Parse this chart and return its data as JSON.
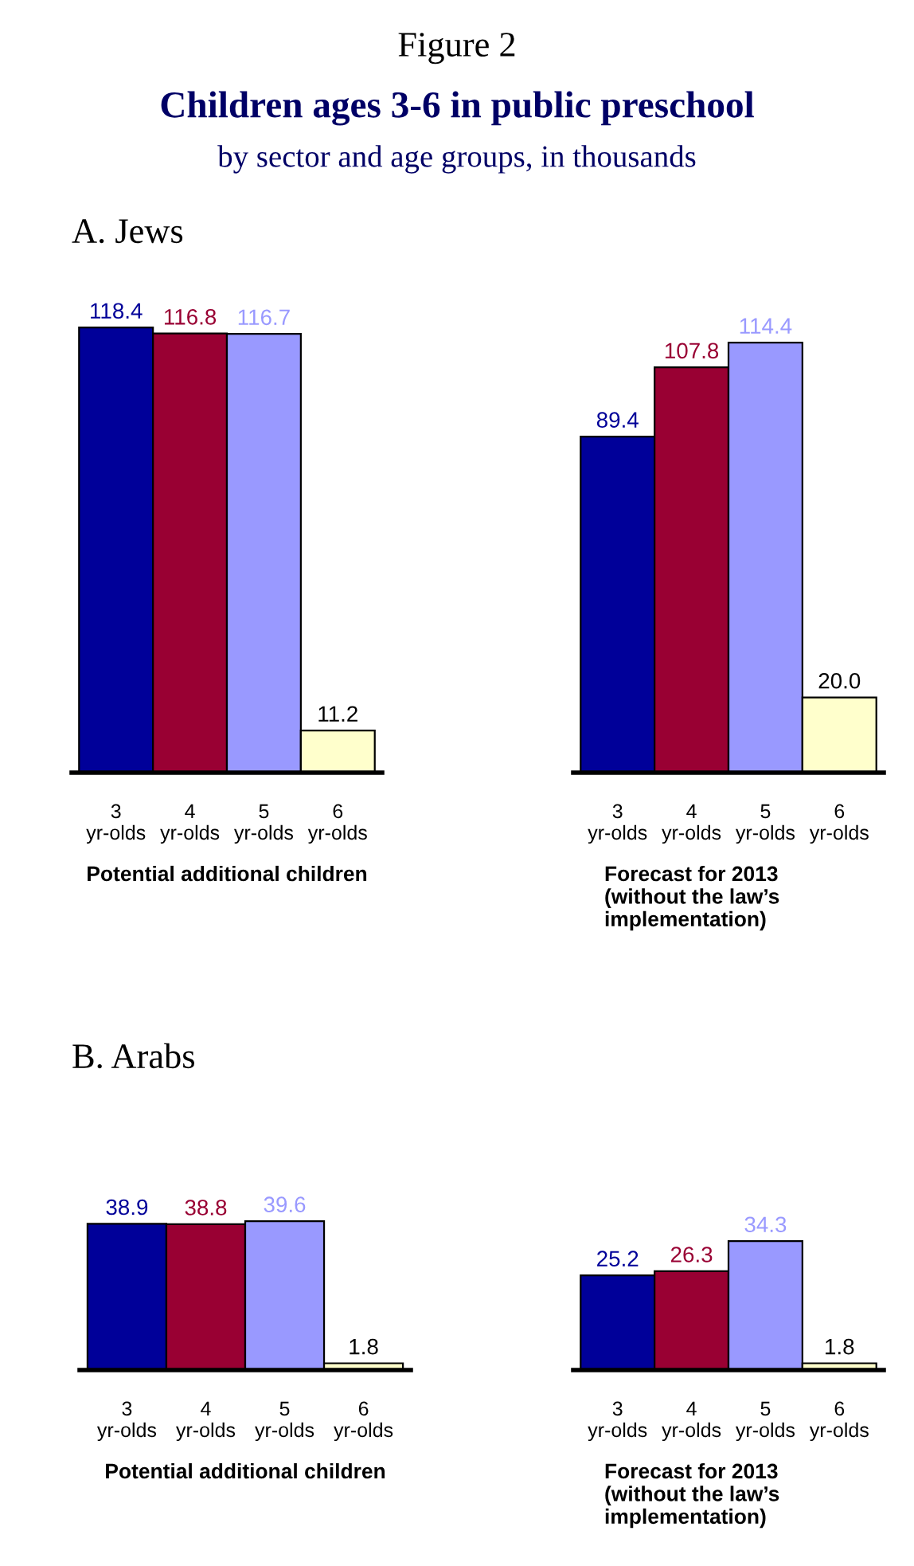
{
  "chart_data": [
    {
      "type": "bar",
      "title": "Children ages 3-6 in public preschool",
      "subtitle": "by sector and age groups, in thousands",
      "annotations": [
        "Figure 2",
        "A. Jews"
      ],
      "xlabel": "Potential additional children",
      "categories": [
        "3\nyr-olds",
        "4\nyr-olds",
        "5\nyr-olds",
        "6\nyr-olds"
      ],
      "values": [
        118.4,
        116.8,
        116.7,
        11.2
      ],
      "colors": [
        "#000099",
        "#990033",
        "#9999ff",
        "#ffffcc"
      ],
      "data_labels": true,
      "grid": false,
      "legend": false
    },
    {
      "type": "bar",
      "xlabel": "Forecast for 2013\n(without the law’s\nimplementation)",
      "categories": [
        "3\nyr-olds",
        "4\nyr-olds",
        "5\nyr-olds",
        "6\nyr-olds"
      ],
      "values": [
        89.4,
        107.8,
        114.4,
        20.0
      ],
      "value_labels": [
        "89.4",
        "107.8",
        "114.4",
        "20.0"
      ],
      "colors": [
        "#000099",
        "#990033",
        "#9999ff",
        "#ffffcc"
      ],
      "grid": false,
      "legend": false
    },
    {
      "type": "bar",
      "annotations": [
        "B. Arabs"
      ],
      "xlabel": "Potential additional children",
      "categories": [
        "3\nyr-olds",
        "4\nyr-olds",
        "5\nyr-olds",
        "6\nyr-olds"
      ],
      "values": [
        38.9,
        38.8,
        39.6,
        1.8
      ],
      "colors": [
        "#000099",
        "#990033",
        "#9999ff",
        "#ffffcc"
      ],
      "data_labels": true,
      "grid": false,
      "legend": false
    },
    {
      "type": "bar",
      "xlabel": "Forecast for 2013\n(without the law’s\nimplementation)",
      "categories": [
        "3\nyr-olds",
        "4\nyr-olds",
        "5\nyr-olds",
        "6\nyr-olds"
      ],
      "values": [
        25.2,
        26.3,
        34.3,
        1.8
      ],
      "colors": [
        "#000099",
        "#990033",
        "#9999ff",
        "#ffffcc"
      ],
      "data_labels": true,
      "grid": false,
      "legend": false
    }
  ]
}
